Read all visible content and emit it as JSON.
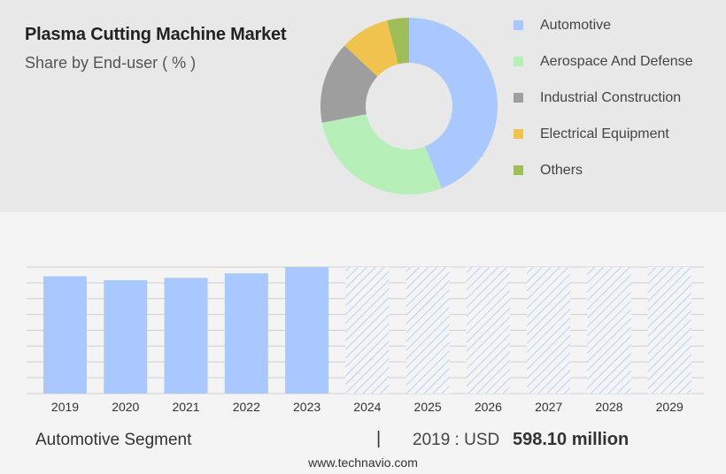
{
  "header": {
    "title": "Plasma Cutting Machine Market",
    "subtitle": "Share by End-user ( % )"
  },
  "footer": {
    "segment": "Automotive Segment",
    "separator": "|",
    "value_label": "2019 : USD",
    "value": "598.10 million",
    "url": "www.technavio.com"
  },
  "chart_data": [
    {
      "type": "pie",
      "style": "donut",
      "categories": [
        "Automotive",
        "Aerospace And Defense",
        "Industrial Construction",
        "Electrical Equipment",
        "Others"
      ],
      "values": [
        44,
        28,
        15,
        9,
        4
      ],
      "colors": [
        "#a8c8ff",
        "#b6f0b8",
        "#9e9e9e",
        "#f0c24e",
        "#9fbe5a"
      ],
      "legend_position": "right"
    },
    {
      "type": "bar",
      "categories": [
        "2019",
        "2020",
        "2021",
        "2022",
        "2023",
        "2024",
        "2025",
        "2026",
        "2027",
        "2028",
        "2029"
      ],
      "values": [
        598.1,
        578,
        590,
        613,
        645,
        645,
        645,
        645,
        645,
        645,
        645
      ],
      "forecast_from": "2024",
      "ylim": [
        0,
        645
      ],
      "grid": true,
      "color": "#a8c8ff"
    }
  ]
}
